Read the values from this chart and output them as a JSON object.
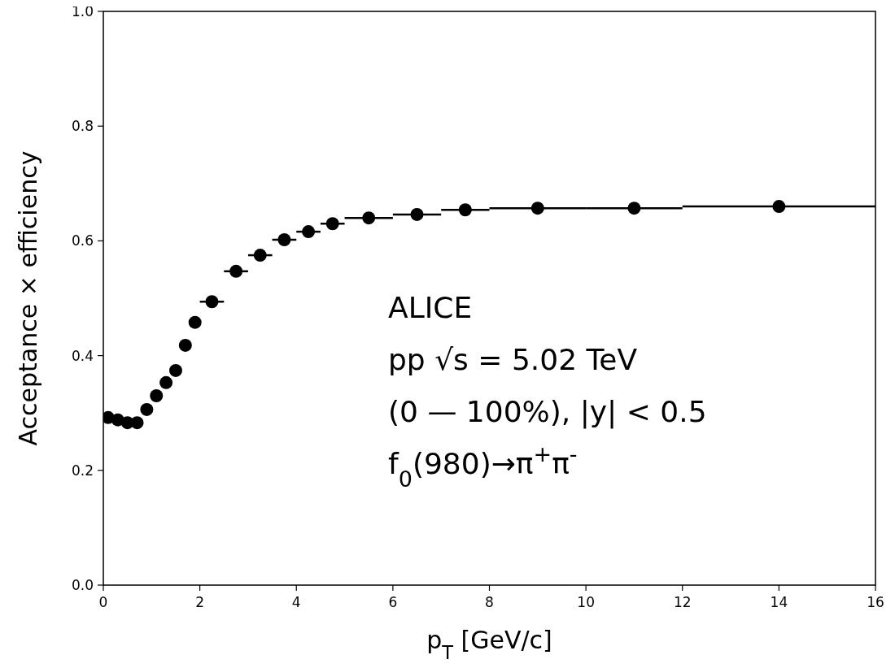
{
  "chart_data": {
    "type": "scatter",
    "xlabel": "p$_{T}$ [GeV/c]",
    "ylabel": "Acceptance × efficiency",
    "x": [
      0.1,
      0.3,
      0.5,
      0.7,
      0.9,
      1.1,
      1.3,
      1.5,
      1.7,
      1.9,
      2.25,
      2.75,
      3.25,
      3.75,
      4.25,
      4.75,
      5.5,
      6.5,
      7.5,
      9,
      11,
      14
    ],
    "values": [
      0.292,
      0.288,
      0.283,
      0.283,
      0.306,
      0.33,
      0.353,
      0.374,
      0.418,
      0.458,
      0.494,
      0.547,
      0.575,
      0.602,
      0.616,
      0.63,
      0.64,
      0.646,
      0.654,
      0.657,
      0.657,
      0.66
    ],
    "xerrors": [
      0.1,
      0.1,
      0.1,
      0.1,
      0.1,
      0.1,
      0.1,
      0.1,
      0.1,
      0.1,
      0.25,
      0.25,
      0.25,
      0.25,
      0.25,
      0.25,
      0.5,
      0.5,
      0.5,
      1,
      1,
      2
    ],
    "color": "#000000",
    "marker": "circle",
    "xlim": [
      0,
      16
    ],
    "xticks": [
      0,
      2,
      4,
      6,
      8,
      10,
      12,
      14,
      16
    ],
    "ylim": [
      0,
      1
    ],
    "yticks": [
      {
        "value": 0,
        "label": "0.0"
      },
      {
        "value": 0.2,
        "label": "0.2"
      },
      {
        "value": 0.4,
        "label": "0.4"
      },
      {
        "value": 0.6,
        "label": "0.6"
      },
      {
        "value": 0.8,
        "label": "0.8"
      },
      {
        "value": 1,
        "label": "1.0"
      }
    ],
    "annotations": [
      "ALICE",
      "pp √s = 5.02 TeV",
      "(0 — 100%), |y| < 0.5",
      "f$_{0}$(980)→π$^{+}$π$^{-}$"
    ],
    "grid": false
  }
}
